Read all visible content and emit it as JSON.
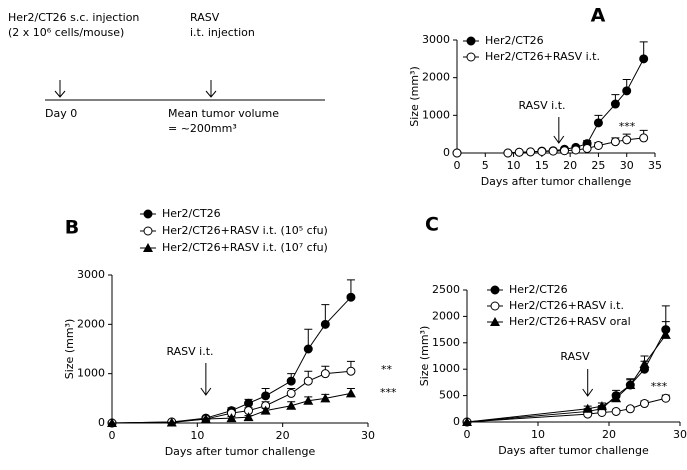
{
  "timeline": {
    "injection": "Her2/CT26  s.c. injection",
    "cells": "(2 x 10⁶ cells/mouse)",
    "rasv": "RASV",
    "rasv_route": "i.t. injection",
    "day0": "Day 0",
    "mean_volume": "Mean tumor volume",
    "volume_value": "= ~200mm³"
  },
  "chart_data": [
    {
      "type": "line",
      "panel_label": "A",
      "x_label": "Days after tumor challenge",
      "y_label": "Size (mm³)",
      "xlim": [
        0,
        35
      ],
      "xticks": [
        0,
        5,
        10,
        15,
        20,
        25,
        30,
        35
      ],
      "ylim": [
        0,
        3000
      ],
      "yticks": [
        0,
        1000,
        2000,
        3000
      ],
      "annotations": [
        "RASV i.t.",
        "***"
      ],
      "x": [
        0,
        9,
        11,
        13,
        15,
        17,
        19,
        21,
        23,
        25,
        28,
        30,
        33
      ],
      "series": [
        {
          "name": "Her2/CT26",
          "marker": "circle-filled",
          "color": "#000000",
          "values": [
            0,
            0,
            20,
            30,
            50,
            60,
            100,
            150,
            250,
            800,
            1300,
            1650,
            2500
          ],
          "errors": [
            0,
            0,
            0,
            0,
            0,
            0,
            20,
            40,
            80,
            200,
            250,
            300,
            450
          ]
        },
        {
          "name": "Her2/CT26+RASV i.t.",
          "marker": "circle-open",
          "color": "#000000",
          "values": [
            0,
            0,
            20,
            30,
            40,
            50,
            60,
            80,
            120,
            200,
            300,
            350,
            400
          ],
          "errors": [
            0,
            0,
            0,
            0,
            0,
            0,
            10,
            20,
            40,
            80,
            100,
            150,
            200
          ]
        }
      ]
    },
    {
      "type": "line",
      "panel_label": "B",
      "x_label": "Days after tumor challenge",
      "y_label": "Size (mm³)",
      "xlim": [
        0,
        30
      ],
      "xticks": [
        0,
        10,
        20,
        30
      ],
      "ylim": [
        0,
        3000
      ],
      "yticks": [
        0,
        1000,
        2000,
        3000
      ],
      "annotations": [
        "RASV i.t.",
        "**",
        "***"
      ],
      "x": [
        0,
        7,
        11,
        14,
        16,
        18,
        21,
        23,
        25,
        28
      ],
      "series": [
        {
          "name": "Her2/CT26",
          "marker": "circle-filled",
          "color": "#000000",
          "values": [
            0,
            20,
            100,
            250,
            400,
            550,
            850,
            1500,
            2000,
            2550
          ],
          "errors": [
            0,
            0,
            30,
            60,
            80,
            150,
            150,
            400,
            400,
            350
          ]
        },
        {
          "name": "Her2/CT26+RASV  i.t. (10⁵ cfu)",
          "marker": "circle-open",
          "color": "#000000",
          "values": [
            0,
            20,
            80,
            200,
            250,
            350,
            600,
            850,
            1000,
            1050
          ],
          "errors": [
            0,
            0,
            20,
            40,
            60,
            80,
            100,
            200,
            150,
            200
          ]
        },
        {
          "name": "Her2/CT26+RASV  i.t. (10⁷ cfu)",
          "marker": "triangle",
          "color": "#000000",
          "values": [
            0,
            10,
            80,
            100,
            120,
            250,
            350,
            450,
            500,
            600
          ],
          "errors": [
            0,
            0,
            20,
            30,
            30,
            50,
            80,
            80,
            80,
            100
          ]
        }
      ]
    },
    {
      "type": "line",
      "panel_label": "C",
      "x_label": "Days after tumor challenge",
      "y_label": "Size (mm³)",
      "xlim": [
        0,
        30
      ],
      "xticks": [
        0,
        10,
        20,
        30
      ],
      "ylim": [
        0,
        2500
      ],
      "yticks": [
        0,
        500,
        1000,
        1500,
        2000,
        2500
      ],
      "annotations": [
        "RASV",
        "***"
      ],
      "x": [
        0,
        17,
        19,
        21,
        23,
        25,
        28
      ],
      "series": [
        {
          "name": "Her2/CT26",
          "marker": "circle-filled",
          "color": "#000000",
          "values": [
            0,
            200,
            250,
            500,
            700,
            1000,
            1750
          ],
          "errors": [
            0,
            50,
            60,
            100,
            120,
            150,
            450
          ]
        },
        {
          "name": "Her2/CT26+RASV  i.t.",
          "marker": "circle-open",
          "color": "#000000",
          "values": [
            0,
            150,
            180,
            200,
            250,
            350,
            450
          ],
          "errors": [
            0,
            30,
            30,
            30,
            40,
            50,
            60
          ]
        },
        {
          "name": "Her2/CT26+RASV  oral",
          "marker": "triangle",
          "color": "#000000",
          "values": [
            0,
            250,
            300,
            450,
            700,
            1100,
            1650
          ],
          "errors": [
            0,
            50,
            60,
            80,
            100,
            150,
            250
          ]
        }
      ]
    }
  ]
}
